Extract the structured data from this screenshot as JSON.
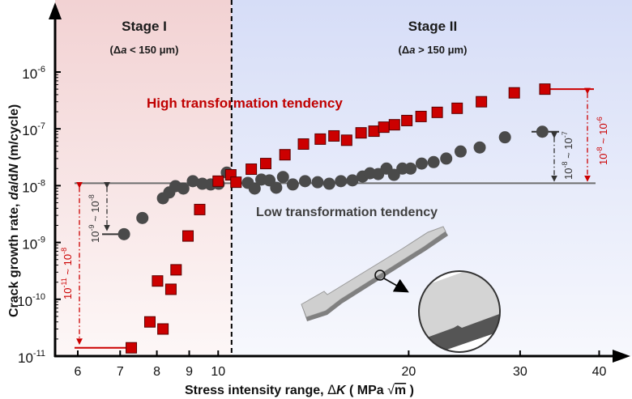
{
  "chart_data": {
    "type": "scatter",
    "title": "",
    "xlabel": "Stress intensity range, ΔK ( MPa √m )",
    "xlabel_parts": {
      "prefix": "Stress intensity range, ",
      "delta": "Δ",
      "var": "K",
      "open": " ( MPa ",
      "sqrt": "√",
      "unit": "m",
      "close": " )"
    },
    "ylabel": "Crack growth rate, da/dN (m/cycle)",
    "ylabel_parts": {
      "prefix": "Crack growth rate, ",
      "var": "da",
      "slash": "/d",
      "var2": "N",
      "suffix": " (m/cycle)"
    },
    "xscale": "log",
    "yscale": "log",
    "xlim": [
      6,
      40
    ],
    "ylim": [
      1e-11,
      1e-06
    ],
    "x_ticks": [
      6,
      7,
      8,
      9,
      10,
      20,
      30,
      40
    ],
    "x_tick_labels": [
      "6",
      "7",
      "8",
      "9",
      "10",
      "20",
      "30",
      "40"
    ],
    "y_ticks": [
      1e-11,
      1e-10,
      1e-09,
      1e-08,
      1e-07,
      1e-06
    ],
    "y_tick_labels": [
      {
        "base": "10",
        "exp": "-11"
      },
      {
        "base": "10",
        "exp": "-10"
      },
      {
        "base": "10",
        "exp": "-9"
      },
      {
        "base": "10",
        "exp": "-8"
      },
      {
        "base": "10",
        "exp": "-7"
      },
      {
        "base": "10",
        "exp": "-6"
      }
    ],
    "grid": false,
    "regions": [
      {
        "name": "Stage I",
        "subtitle_parts": [
          "(",
          "Δ",
          "a",
          " < 150 μm)"
        ],
        "x_range": [
          6,
          10.5
        ],
        "color": "#f3d6d6"
      },
      {
        "name": "Stage II",
        "subtitle_parts": [
          "(",
          "Δ",
          "a",
          " > 150 μm)"
        ],
        "x_range": [
          10.5,
          40
        ],
        "color": "#d9e0f7"
      }
    ],
    "stage_boundary_x": 10.5,
    "reference_line_y": 1e-08,
    "series": [
      {
        "name": "High transformation tendency",
        "marker": "square",
        "color": "#cc0000",
        "points": [
          [
            7.29,
            1.4e-11
          ],
          [
            7.8,
            4e-11
          ],
          [
            8.18,
            3e-11
          ],
          [
            8.02,
            2.1e-10
          ],
          [
            8.42,
            1.5e-10
          ],
          [
            8.58,
            3.3e-10
          ],
          [
            8.96,
            1.3e-09
          ],
          [
            9.35,
            3.8e-09
          ],
          [
            10.0,
            1.2e-08
          ],
          [
            10.47,
            1.55e-08
          ],
          [
            10.67,
            1.15e-08
          ],
          [
            11.28,
            1.95e-08
          ],
          [
            11.89,
            2.45e-08
          ],
          [
            12.75,
            3.5e-08
          ],
          [
            13.64,
            5.4e-08
          ],
          [
            14.5,
            6.6e-08
          ],
          [
            15.24,
            7.5e-08
          ],
          [
            15.96,
            6.3e-08
          ],
          [
            16.82,
            8.5e-08
          ],
          [
            17.63,
            9.1e-08
          ],
          [
            18.27,
            1.07e-07
          ],
          [
            18.99,
            1.18e-07
          ],
          [
            19.87,
            1.4e-07
          ],
          [
            20.92,
            1.65e-07
          ],
          [
            22.19,
            1.95e-07
          ],
          [
            23.86,
            2.3e-07
          ],
          [
            26.06,
            3e-07
          ],
          [
            29.37,
            4.3e-07
          ],
          [
            32.83,
            5e-07
          ]
        ]
      },
      {
        "name": "Low transformation tendency",
        "marker": "circle",
        "color": "#4a4a4a",
        "points": [
          [
            7.1,
            1.4e-09
          ],
          [
            7.59,
            2.7e-09
          ],
          [
            8.18,
            6e-09
          ],
          [
            8.37,
            7.6e-09
          ],
          [
            8.56,
            9.8e-09
          ],
          [
            8.81,
            8.9e-09
          ],
          [
            9.12,
            1.2e-08
          ],
          [
            9.44,
            1.08e-08
          ],
          [
            9.73,
            1.05e-08
          ],
          [
            10.02,
            1.08e-08
          ],
          [
            10.32,
            1.7e-08
          ],
          [
            11.14,
            1.12e-08
          ],
          [
            11.42,
            8.9e-09
          ],
          [
            11.7,
            1.28e-08
          ],
          [
            12.05,
            1.24e-08
          ],
          [
            12.35,
            9.2e-09
          ],
          [
            12.66,
            1.42e-08
          ],
          [
            13.12,
            1.05e-08
          ],
          [
            13.72,
            1.2e-08
          ],
          [
            14.36,
            1.15e-08
          ],
          [
            14.98,
            1.08e-08
          ],
          [
            15.63,
            1.2e-08
          ],
          [
            16.3,
            1.24e-08
          ],
          [
            16.91,
            1.45e-08
          ],
          [
            17.37,
            1.65e-08
          ],
          [
            17.9,
            1.6e-08
          ],
          [
            18.45,
            2e-08
          ],
          [
            18.96,
            1.55e-08
          ],
          [
            19.55,
            2e-08
          ],
          [
            20.14,
            2e-08
          ],
          [
            20.97,
            2.45e-08
          ],
          [
            21.9,
            2.6e-08
          ],
          [
            22.93,
            3e-08
          ],
          [
            24.16,
            4e-08
          ],
          [
            25.9,
            4.7e-08
          ],
          [
            28.39,
            7.1e-08
          ],
          [
            32.53,
            8.9e-08
          ]
        ]
      }
    ],
    "annotations": [
      {
        "id": "stage1-red-range",
        "series": "High transformation tendency",
        "text_parts": {
          "a": "10",
          "ae": "-11",
          "sep": " ~ ",
          "b": "10",
          "be": "-8"
        },
        "from": 1.4e-11,
        "to": 1e-08,
        "color": "#cc0000"
      },
      {
        "id": "stage1-gray-range",
        "series": "Low transformation tendency",
        "text_parts": {
          "a": "10",
          "ae": "-9",
          "sep": " ~ ",
          "b": "10",
          "be": "-8"
        },
        "from": 1.4e-09,
        "to": 1e-08,
        "color": "#4a4a4a"
      },
      {
        "id": "stage2-gray-range",
        "series": "Low transformation tendency",
        "text_parts": {
          "a": "10",
          "ae": "-8",
          "sep": " ~ ",
          "b": "10",
          "be": "-7"
        },
        "from": 1e-08,
        "to": 8.9e-08,
        "color": "#4a4a4a"
      },
      {
        "id": "stage2-red-range",
        "series": "High transformation tendency",
        "text_parts": {
          "a": "10",
          "ae": "-8",
          "sep": " ~ ",
          "b": "10",
          "be": "-6"
        },
        "from": 1e-08,
        "to": 5e-07,
        "color": "#cc0000"
      }
    ],
    "series_labels": {
      "high": "High transformation tendency",
      "low": "Low transformation tendency"
    },
    "inset": {
      "description": "dog-bone specimen with magnified crack region",
      "icon": "specimen-icon"
    }
  }
}
